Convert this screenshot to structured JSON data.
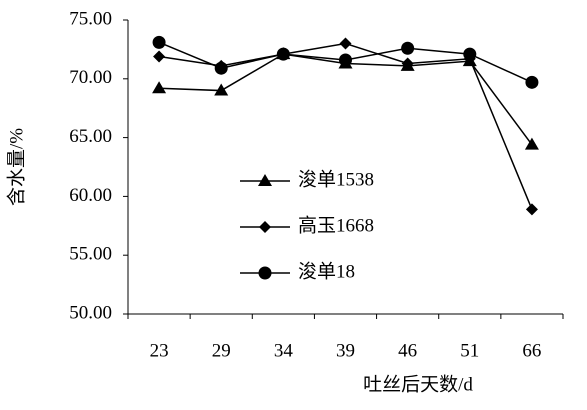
{
  "chart_data": {
    "type": "line",
    "y_label": "含水量/%",
    "x_label": "吐丝后天数/d",
    "categories": [
      "23",
      "29",
      "34",
      "39",
      "46",
      "51",
      "66"
    ],
    "ylim": [
      50,
      75
    ],
    "yticks": [
      {
        "value": 50,
        "label": "50.00"
      },
      {
        "value": 55,
        "label": "55.00"
      },
      {
        "value": 60,
        "label": "60.00"
      },
      {
        "value": 65,
        "label": "65.00"
      },
      {
        "value": 70,
        "label": "70.00"
      },
      {
        "value": 75,
        "label": "75.00"
      }
    ],
    "series": [
      {
        "name": "浚单1538",
        "color": "#000000",
        "marker": "triangle",
        "values": [
          69.2,
          69.0,
          72.1,
          71.3,
          71.1,
          71.5,
          64.4
        ]
      },
      {
        "name": "高玉1668",
        "color": "#000000",
        "marker": "diamond",
        "values": [
          71.9,
          71.1,
          72.1,
          73.0,
          71.3,
          71.7,
          58.9
        ]
      },
      {
        "name": "浚单18",
        "color": "#000000",
        "marker": "circle",
        "values": [
          73.1,
          70.9,
          72.1,
          71.6,
          72.6,
          72.1,
          69.7
        ]
      }
    ]
  }
}
